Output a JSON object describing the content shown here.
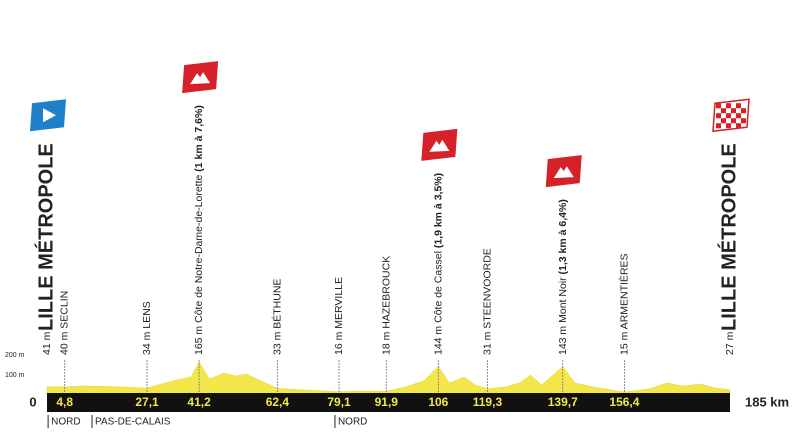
{
  "chart_data": {
    "type": "profile",
    "x": [
      0,
      4.8,
      10,
      18,
      27.1,
      30,
      35,
      39,
      41.2,
      44,
      48,
      51,
      54,
      58,
      62.4,
      70,
      79.1,
      85,
      91.9,
      97,
      102,
      106,
      109,
      113,
      116,
      119.3,
      124,
      128,
      131,
      134,
      139.7,
      143,
      148,
      156.4,
      163,
      168,
      172,
      177,
      181,
      185
    ],
    "values": [
      41,
      40,
      45,
      42,
      34,
      50,
      75,
      90,
      165,
      80,
      110,
      95,
      105,
      70,
      33,
      25,
      16,
      20,
      18,
      40,
      70,
      144,
      60,
      90,
      50,
      31,
      40,
      60,
      100,
      50,
      143,
      60,
      40,
      15,
      30,
      60,
      45,
      55,
      35,
      27
    ],
    "color": "#f3e64a",
    "xlim": [
      0,
      185
    ],
    "ylim": [
      0,
      200
    ],
    "yticks": [
      {
        "value": 100,
        "label": "100 m"
      },
      {
        "value": 200,
        "label": "200 m"
      }
    ],
    "xticks": [
      {
        "value": 0,
        "label": "0"
      },
      {
        "value": 4.8,
        "label": "4,8"
      },
      {
        "value": 27.1,
        "label": "27,1"
      },
      {
        "value": 41.2,
        "label": "41,2"
      },
      {
        "value": 62.4,
        "label": "62,4"
      },
      {
        "value": 79.1,
        "label": "79,1"
      },
      {
        "value": 91.9,
        "label": "91,9"
      },
      {
        "value": 106,
        "label": "106"
      },
      {
        "value": 119.3,
        "label": "119,3"
      },
      {
        "value": 139.7,
        "label": "139,7"
      },
      {
        "value": 156.4,
        "label": "156,4"
      },
      {
        "value": 185,
        "label": "185 km"
      }
    ],
    "waypoints": [
      {
        "altitude": "41 m",
        "name": "LILLE MÉTROPOLE",
        "flag": "start"
      },
      {
        "altitude": "40 m",
        "name": "SECLIN"
      },
      {
        "altitude": "34 m",
        "name": "LENS"
      },
      {
        "altitude": "165 m",
        "name": "Côte de Notre-Dame-de-Lorette",
        "climb": "(1 km à 7,6%)",
        "flag": "climb"
      },
      {
        "altitude": "33 m",
        "name": "BÉTHUNE"
      },
      {
        "altitude": "16 m",
        "name": "MERVILLE"
      },
      {
        "altitude": "18 m",
        "name": "HAZEBROUCK"
      },
      {
        "altitude": "144 m",
        "name": "Côte de Cassel",
        "climb": "(1,9 km à 3,5%)",
        "flag": "climb"
      },
      {
        "altitude": "31 m",
        "name": "STEENVOORDE"
      },
      {
        "altitude": "143 m",
        "name": "Mont Noir",
        "climb": "(1,3 km à 6,4%)",
        "flag": "climb"
      },
      {
        "altitude": "15 m",
        "name": "ARMENTIÈRES"
      },
      {
        "altitude": "27 m",
        "name": "LILLE MÉTROPOLE",
        "flag": "finish"
      }
    ],
    "regions": [
      {
        "km": 0.3,
        "label": "NORD"
      },
      {
        "km": 12.2,
        "label": "PAS-DE-CALAIS"
      },
      {
        "km": 78,
        "label": "NORD"
      }
    ]
  }
}
